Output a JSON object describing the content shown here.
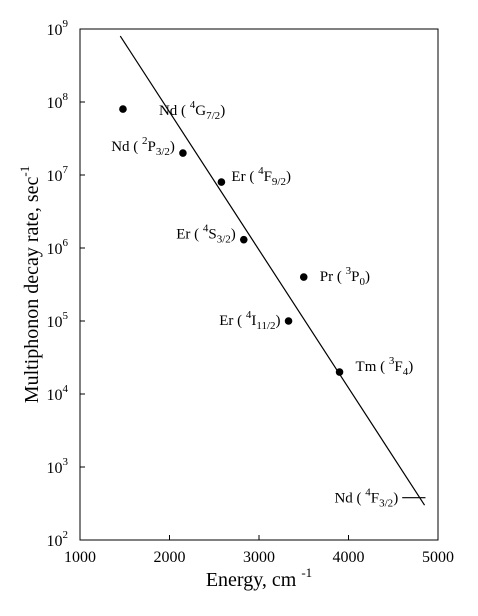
{
  "chart_data": {
    "type": "scatter",
    "title": "",
    "xlabel": "Energy, cm",
    "xlabel_exponent": "-1",
    "ylabel": "Multiphonon decay rate, sec",
    "ylabel_exponent": "-1",
    "xlim": [
      1000,
      5000
    ],
    "ylim_log10": [
      2,
      9
    ],
    "yscale": "log",
    "grid": false,
    "legend": "none",
    "x_ticks": [
      "1000",
      "2000",
      "3000",
      "4000",
      "5000"
    ],
    "y_ticks": [
      {
        "base": "10",
        "exp": "2"
      },
      {
        "base": "10",
        "exp": "3"
      },
      {
        "base": "10",
        "exp": "4"
      },
      {
        "base": "10",
        "exp": "5"
      },
      {
        "base": "10",
        "exp": "6"
      },
      {
        "base": "10",
        "exp": "7"
      },
      {
        "base": "10",
        "exp": "8"
      },
      {
        "base": "10",
        "exp": "9"
      }
    ],
    "points": [
      {
        "x": 1480,
        "y": 80000000.0,
        "ion": "Nd",
        "pre": "4",
        "level": "G",
        "sub": "7/2"
      },
      {
        "x": 2150,
        "y": 20000000.0,
        "ion": "Nd",
        "pre": "2",
        "level": "P",
        "sub": "3/2"
      },
      {
        "x": 2580,
        "y": 8000000.0,
        "ion": "Er",
        "pre": "4",
        "level": "F",
        "sub": "9/2"
      },
      {
        "x": 2830,
        "y": 1300000.0,
        "ion": "Er",
        "pre": "4",
        "level": "S",
        "sub": "3/2"
      },
      {
        "x": 3500,
        "y": 400000.0,
        "ion": "Pr",
        "pre": "3",
        "level": "P",
        "sub": "0"
      },
      {
        "x": 3330,
        "y": 100000.0,
        "ion": "Er",
        "pre": "4",
        "level": "I",
        "sub": "11/2"
      },
      {
        "x": 3900,
        "y": 20000.0,
        "ion": "Tm",
        "pre": "3",
        "level": "F",
        "sub": "4"
      }
    ],
    "fit_line": {
      "x": [
        1450,
        4850
      ],
      "y": [
        800000000.0,
        300.0
      ]
    },
    "reference_line": {
      "x": [
        4600,
        4860
      ],
      "y": [
        380.0,
        380.0
      ],
      "ion": "Nd",
      "pre": "4",
      "level": "F",
      "sub": "3/2"
    },
    "colors": {
      "ink": "#000000",
      "background": "#ffffff"
    }
  }
}
